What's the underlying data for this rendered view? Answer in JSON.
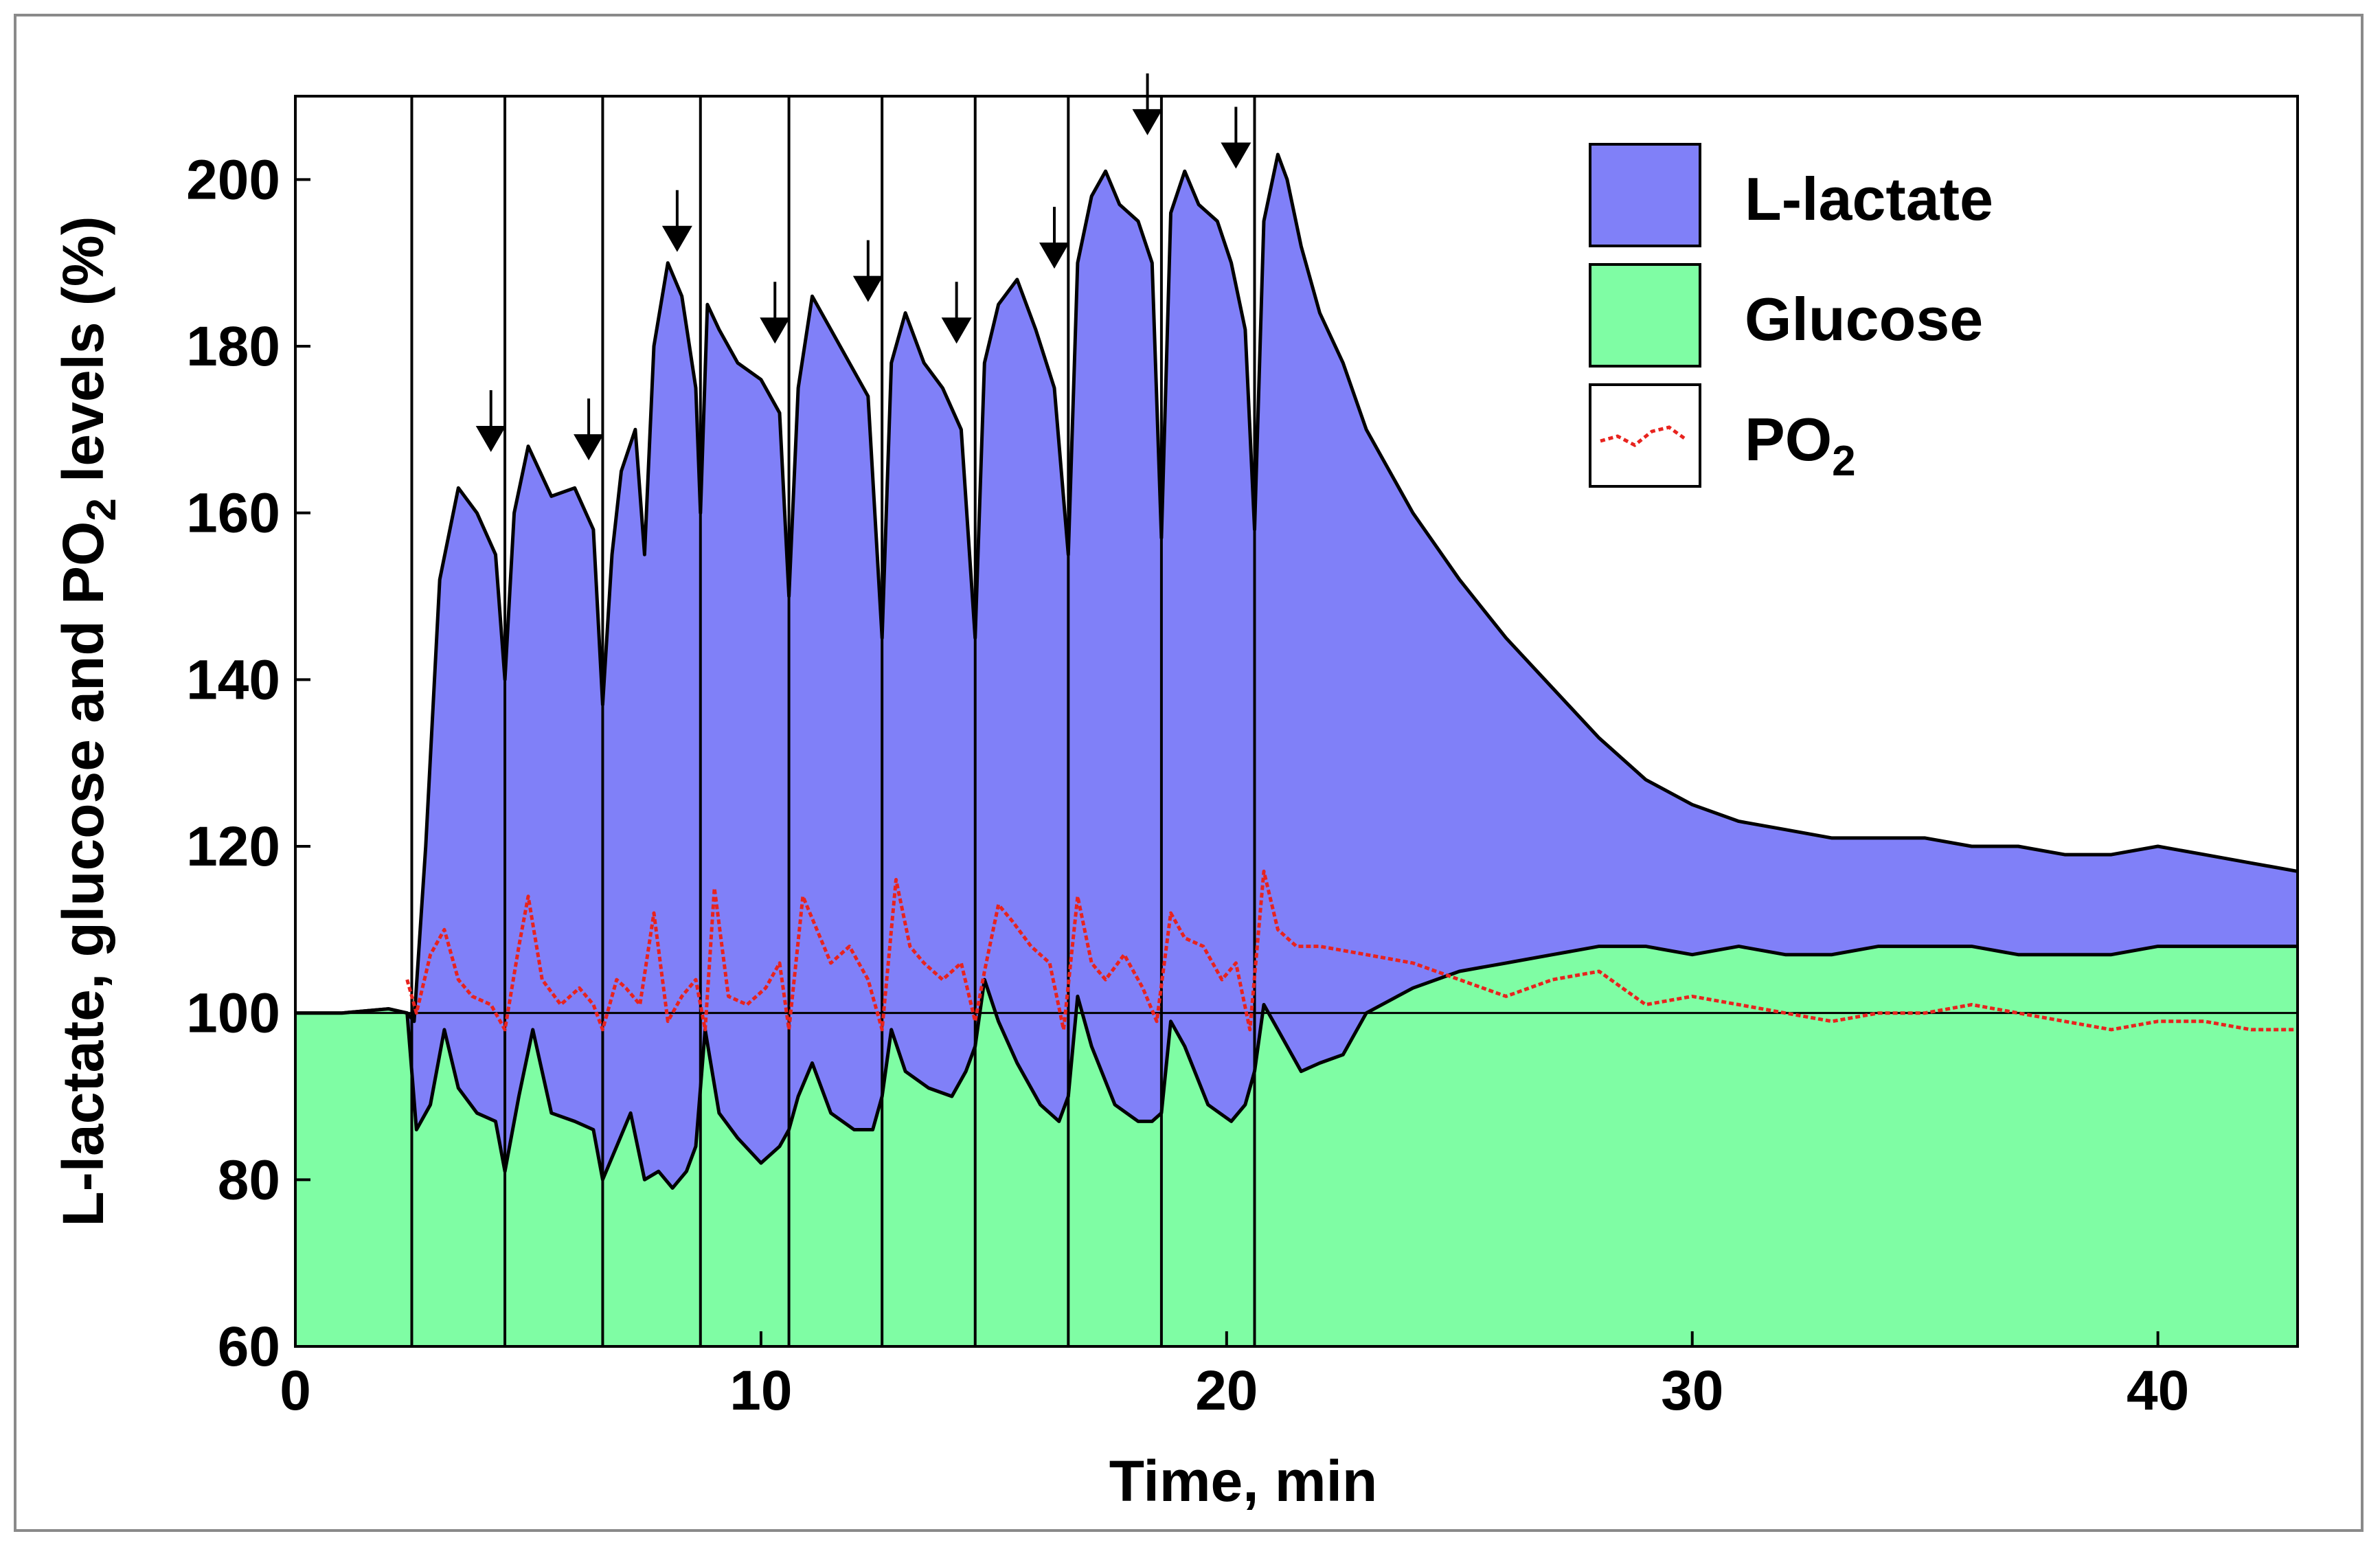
{
  "chart_data": {
    "type": "area",
    "title": "",
    "xlabel": "Time, min",
    "ylabel_parts": [
      "L-lactate, glucose and PO",
      "2",
      " levels (%)"
    ],
    "xlim": [
      0,
      43
    ],
    "ylim": [
      60,
      210
    ],
    "x_ticks": [
      "0",
      "10",
      "20",
      "30",
      "40"
    ],
    "x_tick_values": [
      0,
      10,
      20,
      30,
      40
    ],
    "y_ticks": [
      "60",
      "80",
      "100",
      "120",
      "140",
      "160",
      "180",
      "200"
    ],
    "y_tick_values": [
      60,
      80,
      100,
      120,
      140,
      160,
      180,
      200
    ],
    "baseline": 100,
    "stimulus_times": [
      2.5,
      4.5,
      6.6,
      8.7,
      10.6,
      12.6,
      14.6,
      16.6,
      18.6,
      20.6
    ],
    "arrow_markers": [
      {
        "x": 4.2,
        "y": 165
      },
      {
        "x": 6.3,
        "y": 164
      },
      {
        "x": 8.2,
        "y": 189
      },
      {
        "x": 10.3,
        "y": 178
      },
      {
        "x": 12.3,
        "y": 183
      },
      {
        "x": 14.2,
        "y": 178
      },
      {
        "x": 16.3,
        "y": 187
      },
      {
        "x": 18.3,
        "y": 203
      },
      {
        "x": 20.2,
        "y": 199
      }
    ],
    "legend": [
      {
        "name": "L-lactate",
        "label_main": "L-lactate",
        "label_sub": "",
        "color": "#8080f8",
        "kind": "fill"
      },
      {
        "name": "Glucose",
        "label_main": "Glucose",
        "label_sub": "",
        "color": "#7ffda4",
        "kind": "fill"
      },
      {
        "name": "PO2",
        "label_main": "PO",
        "label_sub": "2",
        "color": "#e8231e",
        "kind": "line"
      }
    ],
    "series": [
      {
        "name": "L-lactate",
        "fill": "#8080f8",
        "x": [
          0,
          1,
          2,
          2.4,
          2.55,
          2.8,
          3.1,
          3.5,
          3.9,
          4.3,
          4.5,
          4.7,
          5.0,
          5.5,
          6.0,
          6.4,
          6.6,
          6.8,
          7.0,
          7.3,
          7.5,
          7.7,
          8.0,
          8.3,
          8.6,
          8.7,
          8.85,
          9.1,
          9.5,
          10.0,
          10.4,
          10.6,
          10.8,
          11.1,
          11.5,
          11.9,
          12.3,
          12.6,
          12.8,
          13.1,
          13.5,
          13.9,
          14.3,
          14.6,
          14.8,
          15.1,
          15.5,
          15.9,
          16.3,
          16.6,
          16.8,
          17.1,
          17.4,
          17.7,
          18.1,
          18.4,
          18.6,
          18.8,
          19.1,
          19.4,
          19.8,
          20.1,
          20.4,
          20.6,
          20.8,
          21.1,
          21.3,
          21.6,
          22.0,
          22.5,
          23.0,
          24.0,
          25.0,
          26.0,
          27.0,
          28.0,
          29.0,
          30.0,
          31.0,
          32.0,
          33.0,
          34.0,
          35.0,
          36.0,
          37.0,
          38.0,
          39.0,
          40.0,
          41.0,
          42.0,
          43.0
        ],
        "values": [
          100,
          100,
          100.5,
          100,
          99,
          120,
          152,
          163,
          160,
          155,
          140,
          160,
          168,
          162,
          163,
          158,
          137,
          155,
          165,
          170,
          155,
          180,
          190,
          186,
          175,
          160,
          185,
          182,
          178,
          176,
          172,
          150,
          175,
          186,
          182,
          178,
          174,
          145,
          178,
          184,
          178,
          175,
          170,
          145,
          178,
          185,
          188,
          182,
          175,
          155,
          190,
          198,
          201,
          197,
          195,
          190,
          157,
          196,
          201,
          197,
          195,
          190,
          182,
          158,
          195,
          203,
          200,
          192,
          184,
          178,
          170,
          160,
          152,
          145,
          139,
          133,
          128,
          125,
          123,
          122,
          121,
          121,
          121,
          120,
          120,
          119,
          119,
          120,
          119,
          118,
          117
        ]
      },
      {
        "name": "Glucose",
        "fill": "#7ffda4",
        "x": [
          0,
          1,
          2,
          2.4,
          2.6,
          2.9,
          3.2,
          3.5,
          3.9,
          4.3,
          4.5,
          4.8,
          5.1,
          5.5,
          6.0,
          6.4,
          6.6,
          6.9,
          7.2,
          7.5,
          7.8,
          8.1,
          8.4,
          8.6,
          8.8,
          9.1,
          9.5,
          10.0,
          10.4,
          10.6,
          10.8,
          11.1,
          11.5,
          12.0,
          12.4,
          12.6,
          12.8,
          13.1,
          13.6,
          14.1,
          14.4,
          14.6,
          14.8,
          15.1,
          15.5,
          16.0,
          16.4,
          16.6,
          16.8,
          17.1,
          17.6,
          18.1,
          18.4,
          18.6,
          18.8,
          19.1,
          19.6,
          20.1,
          20.4,
          20.6,
          20.8,
          21.1,
          21.6,
          22.0,
          22.5,
          23.0,
          24.0,
          25.0,
          26.0,
          27.0,
          28.0,
          29.0,
          30.0,
          31.0,
          32.0,
          33.0,
          34.0,
          35.0,
          36.0,
          37.0,
          38.0,
          39.0,
          40.0,
          41.0,
          42.0,
          43.0
        ],
        "values": [
          100,
          100,
          100.5,
          100,
          86,
          89,
          98,
          91,
          88,
          87,
          81,
          90,
          98,
          88,
          87,
          86,
          80,
          84,
          88,
          80,
          81,
          79,
          81,
          84,
          98,
          88,
          85,
          82,
          84,
          86,
          90,
          94,
          88,
          86,
          86,
          90,
          98,
          93,
          91,
          90,
          93,
          96,
          104,
          99,
          94,
          89,
          87,
          90,
          102,
          96,
          89,
          87,
          87,
          88,
          99,
          96,
          89,
          87,
          89,
          93,
          101,
          98,
          93,
          94,
          95,
          100,
          103,
          105,
          106,
          107,
          108,
          108,
          107,
          108,
          107,
          107,
          108,
          108,
          108,
          107,
          107,
          107,
          108,
          108,
          108,
          108
        ]
      },
      {
        "name": "PO2",
        "stroke": "#e8231e",
        "x": [
          2.4,
          2.6,
          2.9,
          3.2,
          3.5,
          3.8,
          4.2,
          4.5,
          4.8,
          5.0,
          5.3,
          5.7,
          6.1,
          6.4,
          6.6,
          6.9,
          7.1,
          7.4,
          7.7,
          8.0,
          8.3,
          8.6,
          8.8,
          9.0,
          9.3,
          9.7,
          10.1,
          10.4,
          10.6,
          10.9,
          11.2,
          11.5,
          11.9,
          12.3,
          12.6,
          12.9,
          13.2,
          13.5,
          13.9,
          14.3,
          14.6,
          14.8,
          15.1,
          15.4,
          15.8,
          16.2,
          16.5,
          16.8,
          17.1,
          17.4,
          17.8,
          18.2,
          18.5,
          18.8,
          19.1,
          19.5,
          19.9,
          20.2,
          20.5,
          20.8,
          21.1,
          21.5,
          22.0,
          23.0,
          24.0,
          25.0,
          26.0,
          27.0,
          28.0,
          29.0,
          30.0,
          31.0,
          32.0,
          33.0,
          34.0,
          35.0,
          36.0,
          37.0,
          38.0,
          39.0,
          40.0,
          41.0,
          42.0,
          43.0
        ],
        "values": [
          104,
          100,
          107,
          110,
          104,
          102,
          101,
          98,
          108,
          114,
          104,
          101,
          103,
          101,
          98,
          104,
          103,
          101,
          112,
          99,
          102,
          104,
          98,
          115,
          102,
          101,
          103,
          106,
          98,
          114,
          110,
          106,
          108,
          104,
          98,
          116,
          108,
          106,
          104,
          106,
          99,
          105,
          113,
          111,
          108,
          106,
          98,
          114,
          106,
          104,
          107,
          103,
          99,
          112,
          109,
          108,
          104,
          106,
          98,
          117,
          110,
          108,
          108,
          107,
          106,
          104,
          102,
          104,
          105,
          101,
          102,
          101,
          100,
          99,
          100,
          100,
          101,
          100,
          99,
          98,
          99,
          99,
          98,
          98
        ]
      }
    ]
  }
}
